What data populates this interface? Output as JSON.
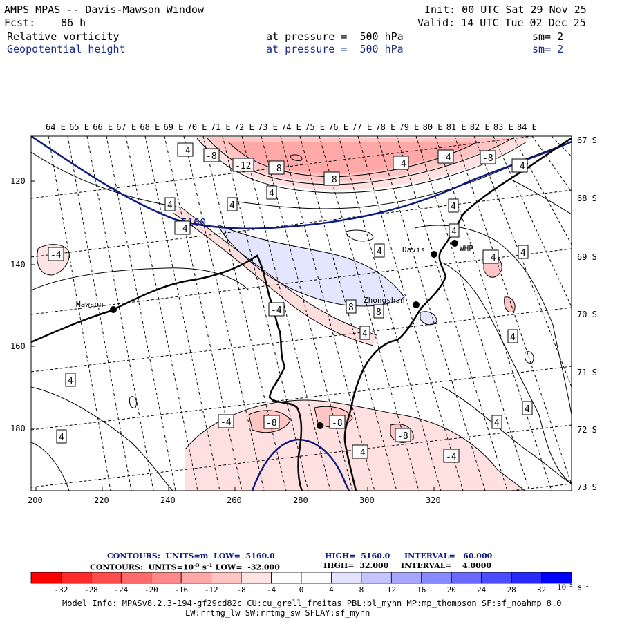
{
  "header": {
    "title": "AMPS MPAS -- Davis-Mawson Window",
    "init": "Init: 00 UTC Sat 29 Nov 25",
    "fcst_label": "Fcst:",
    "fcst_value": "86 h",
    "valid": "Valid: 14 UTC Tue 02 Dec 25",
    "field1_name": "Relative vorticity",
    "field1_level": "at pressure =  500 hPa",
    "field1_sm": "sm= 2",
    "field2_name": "Geopotential height",
    "field2_level": "at pressure =  500 hPa",
    "field2_sm": "sm= 2"
  },
  "map": {
    "lon_labels": [
      "64 E",
      "65 E",
      "66 E",
      "67 E",
      "68 E",
      "69 E",
      "70 E",
      "71 E",
      "72 E",
      "73 E",
      "74 E",
      "75 E",
      "76 E",
      "77 E",
      "78 E",
      "79 E",
      "80 E",
      "81 E",
      "82 E",
      "83 E",
      "84 E"
    ],
    "lat_labels": [
      "67 S",
      "68 S",
      "69 S",
      "70 S",
      "71 S",
      "72 S",
      "73 S"
    ],
    "x_ticks": [
      "200",
      "220",
      "240",
      "260",
      "280",
      "300",
      "320"
    ],
    "y_ticks": [
      "120",
      "140",
      "160",
      "180"
    ],
    "stations": [
      {
        "name": "Mawson"
      },
      {
        "name": "Davis"
      },
      {
        "name": "WHP"
      },
      {
        "name": "Zhongshan"
      },
      {
        "name": ""
      }
    ],
    "height_contour_label": "5160",
    "vorticity_labels": [
      "-4",
      "-8",
      "-12",
      "-8",
      "-8",
      "-4",
      "-4",
      "-8",
      "-4",
      "4",
      "4",
      "-4",
      "4",
      "4",
      "4",
      "-4",
      "4",
      "-4",
      "8",
      "8",
      "-4",
      "4",
      "4",
      "4",
      "4",
      "4",
      "-4",
      "-8",
      "-8",
      "-8",
      "-4",
      "4",
      "-4",
      "4"
    ]
  },
  "contour_info": {
    "line1_prefix": "CONTOURS:  UNITS=m  LOW=  5160.0",
    "line1_high": "HIGH=  5160.0",
    "line1_interval": "INTERVAL=   60.000",
    "line2_prefix": "CONTOURS:  UNITS=10",
    "line2_sup": "-5",
    "line2_unit": " s",
    "line2_unitsup": "-1",
    "line2_low": " LOW=  -32.000",
    "line2_high": "HIGH=  32.000",
    "line2_interval": "INTERVAL=    4.0000"
  },
  "colorbar": {
    "ticks": [
      "-32",
      "-28",
      "-24",
      "-20",
      "-16",
      "-12",
      "-8",
      "-4",
      "0",
      "4",
      "8",
      "12",
      "16",
      "20",
      "24",
      "28",
      "32"
    ],
    "unit_prefix": "10",
    "unit_exp": "-5",
    "unit_s": " s",
    "unit_sexp": "-1",
    "colors": [
      "#ff0000",
      "#ff2a2a",
      "#ff4c4c",
      "#ff6a6a",
      "#ff8888",
      "#ffa6a6",
      "#ffc4c4",
      "#ffe2e2",
      "#ffffff",
      "#ffffff",
      "#e2e2ff",
      "#c4c4ff",
      "#a6a6ff",
      "#8888ff",
      "#6a6aff",
      "#4c4cff",
      "#2a2aff",
      "#0000ff"
    ]
  },
  "model_info": {
    "line1": "Model Info: MPASv8.2.3-194-gf29cd82c CU:cu_grell_freitas PBL:bl_mynn MP:mp_thompson SF:sf_noahmp 8.0",
    "line2": "LW:rrtmg_lw SW:rrtmg_sw SFLAY:sf_mynn"
  }
}
